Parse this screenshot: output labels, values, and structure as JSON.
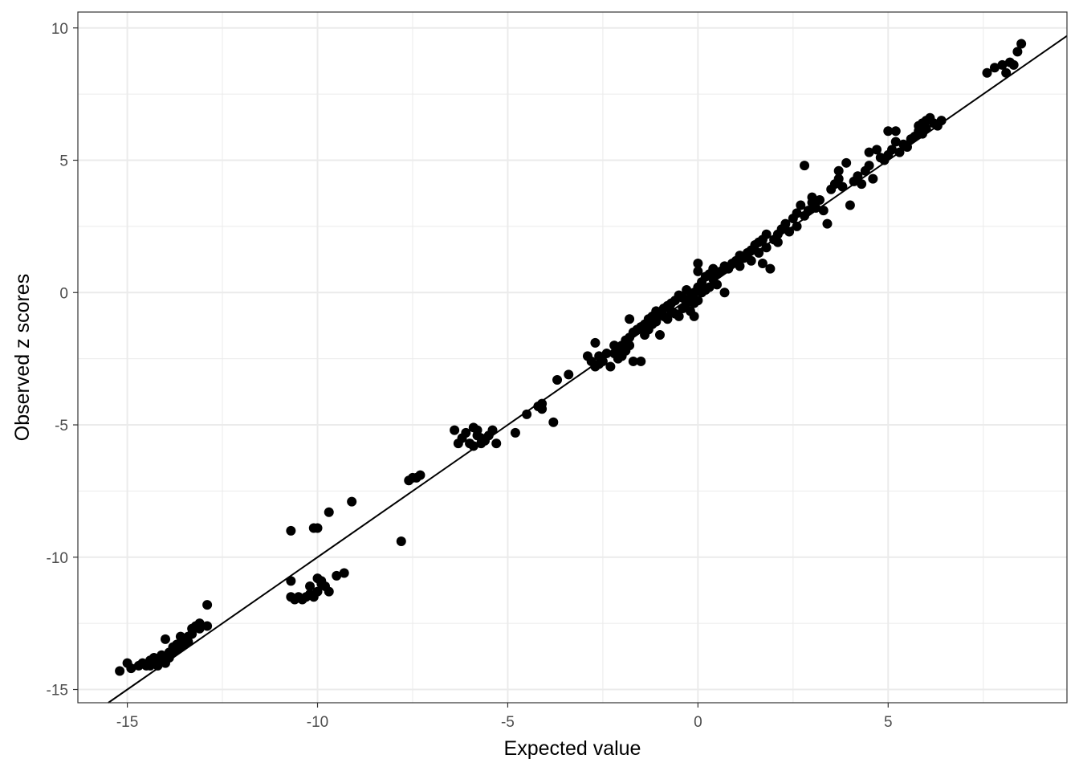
{
  "chart_data": {
    "type": "scatter",
    "title": "",
    "xlabel": "Expected value",
    "ylabel": "Observed z scores",
    "xlim": [
      -16.3,
      9.7
    ],
    "ylim": [
      -15.5,
      10.6
    ],
    "x_ticks": [
      -15,
      -10,
      -5,
      0,
      5
    ],
    "x_tick_labels": [
      "-15",
      "-10",
      "-5",
      "0",
      "5"
    ],
    "y_ticks": [
      -15,
      -10,
      -5,
      0,
      5,
      10
    ],
    "y_tick_labels": [
      "-15",
      "-10",
      "-5",
      "0",
      "5",
      "10"
    ],
    "grid": true,
    "legend": "none",
    "theme": "black-and-white panel with light grey grid",
    "colors": {
      "points": "#000000",
      "line": "#000000",
      "grid": "#ebebeb",
      "panel_border": "#333333",
      "tick_text": "#4d4d4d"
    },
    "reference_line": {
      "slope": 1,
      "intercept": 0,
      "from": [
        -15.7,
        -15.7
      ],
      "to": [
        9.7,
        9.7
      ]
    },
    "series": [
      {
        "values": [
          [
            -15.2,
            -14.3
          ],
          [
            -15.0,
            -14.0
          ],
          [
            -14.9,
            -14.2
          ],
          [
            -14.7,
            -14.1
          ],
          [
            -14.6,
            -14.0
          ],
          [
            -14.5,
            -14.1
          ],
          [
            -14.4,
            -13.9
          ],
          [
            -14.4,
            -14.1
          ],
          [
            -14.3,
            -13.8
          ],
          [
            -14.3,
            -14.0
          ],
          [
            -14.2,
            -13.9
          ],
          [
            -14.2,
            -14.1
          ],
          [
            -14.1,
            -13.7
          ],
          [
            -14.1,
            -13.9
          ],
          [
            -14.0,
            -13.8
          ],
          [
            -14.0,
            -14.0
          ],
          [
            -13.9,
            -13.6
          ],
          [
            -13.9,
            -13.8
          ],
          [
            -14.0,
            -13.1
          ],
          [
            -13.8,
            -13.4
          ],
          [
            -13.8,
            -13.6
          ],
          [
            -13.7,
            -13.3
          ],
          [
            -13.7,
            -13.5
          ],
          [
            -13.6,
            -13.0
          ],
          [
            -13.6,
            -13.4
          ],
          [
            -13.5,
            -13.1
          ],
          [
            -13.5,
            -13.3
          ],
          [
            -13.4,
            -13.0
          ],
          [
            -13.4,
            -13.2
          ],
          [
            -13.3,
            -12.9
          ],
          [
            -13.3,
            -12.7
          ],
          [
            -13.2,
            -12.6
          ],
          [
            -13.1,
            -12.7
          ],
          [
            -13.1,
            -12.5
          ],
          [
            -12.9,
            -12.6
          ],
          [
            -12.9,
            -11.8
          ],
          [
            -10.7,
            -10.9
          ],
          [
            -10.7,
            -11.5
          ],
          [
            -10.6,
            -11.6
          ],
          [
            -10.5,
            -11.5
          ],
          [
            -10.4,
            -11.6
          ],
          [
            -10.3,
            -11.5
          ],
          [
            -10.2,
            -11.4
          ],
          [
            -10.1,
            -11.5
          ],
          [
            -10.0,
            -11.3
          ],
          [
            -10.2,
            -11.1
          ],
          [
            -10.0,
            -10.8
          ],
          [
            -9.9,
            -11.0
          ],
          [
            -9.9,
            -10.9
          ],
          [
            -9.8,
            -11.1
          ],
          [
            -9.7,
            -11.3
          ],
          [
            -9.5,
            -10.7
          ],
          [
            -9.3,
            -10.6
          ],
          [
            -10.7,
            -9.0
          ],
          [
            -10.1,
            -8.9
          ],
          [
            -10.0,
            -8.9
          ],
          [
            -9.7,
            -8.3
          ],
          [
            -9.1,
            -7.9
          ],
          [
            -7.8,
            -9.4
          ],
          [
            -7.6,
            -7.1
          ],
          [
            -7.5,
            -7.0
          ],
          [
            -7.4,
            -7.0
          ],
          [
            -7.3,
            -6.9
          ],
          [
            -6.4,
            -5.2
          ],
          [
            -6.3,
            -5.7
          ],
          [
            -6.2,
            -5.5
          ],
          [
            -6.1,
            -5.3
          ],
          [
            -6.0,
            -5.7
          ],
          [
            -5.9,
            -5.8
          ],
          [
            -5.9,
            -5.1
          ],
          [
            -5.8,
            -5.4
          ],
          [
            -5.8,
            -5.2
          ],
          [
            -5.7,
            -5.7
          ],
          [
            -5.7,
            -5.5
          ],
          [
            -5.6,
            -5.6
          ],
          [
            -5.5,
            -5.4
          ],
          [
            -5.4,
            -5.2
          ],
          [
            -5.3,
            -5.7
          ],
          [
            -4.8,
            -5.3
          ],
          [
            -4.5,
            -4.6
          ],
          [
            -4.2,
            -4.3
          ],
          [
            -4.1,
            -4.2
          ],
          [
            -4.1,
            -4.4
          ],
          [
            -3.8,
            -4.9
          ],
          [
            -3.7,
            -3.3
          ],
          [
            -3.4,
            -3.1
          ],
          [
            -2.9,
            -2.4
          ],
          [
            -2.8,
            -2.6
          ],
          [
            -2.7,
            -2.8
          ],
          [
            -2.7,
            -1.9
          ],
          [
            -2.6,
            -2.4
          ],
          [
            -2.6,
            -2.7
          ],
          [
            -2.5,
            -2.6
          ],
          [
            -2.4,
            -2.3
          ],
          [
            -2.3,
            -2.8
          ],
          [
            -2.2,
            -2.0
          ],
          [
            -2.2,
            -2.3
          ],
          [
            -2.1,
            -2.1
          ],
          [
            -2.1,
            -2.5
          ],
          [
            -2.0,
            -2.0
          ],
          [
            -2.0,
            -2.4
          ],
          [
            -1.9,
            -1.8
          ],
          [
            -1.9,
            -2.2
          ],
          [
            -1.8,
            -1.7
          ],
          [
            -1.8,
            -2.0
          ],
          [
            -1.8,
            -1.0
          ],
          [
            -1.7,
            -1.5
          ],
          [
            -1.7,
            -2.6
          ],
          [
            -1.6,
            -1.4
          ],
          [
            -1.5,
            -1.3
          ],
          [
            -1.5,
            -2.6
          ],
          [
            -1.4,
            -1.6
          ],
          [
            -1.4,
            -1.2
          ],
          [
            -1.3,
            -1.0
          ],
          [
            -1.3,
            -1.4
          ],
          [
            -1.2,
            -0.9
          ],
          [
            -1.2,
            -1.2
          ],
          [
            -1.1,
            -0.7
          ],
          [
            -1.1,
            -1.1
          ],
          [
            -1.0,
            -0.8
          ],
          [
            -1.0,
            -1.6
          ],
          [
            -0.9,
            -0.6
          ],
          [
            -0.9,
            -0.9
          ],
          [
            -0.8,
            -0.5
          ],
          [
            -0.8,
            -1.0
          ],
          [
            -0.7,
            -0.4
          ],
          [
            -0.7,
            -0.7
          ],
          [
            -0.6,
            -0.3
          ],
          [
            -0.6,
            -0.8
          ],
          [
            -0.5,
            -0.1
          ],
          [
            -0.5,
            -0.9
          ],
          [
            -0.4,
            -0.2
          ],
          [
            -0.4,
            -0.6
          ],
          [
            -0.3,
            0.1
          ],
          [
            -0.3,
            -0.4
          ],
          [
            -0.2,
            -0.2
          ],
          [
            -0.2,
            -0.7
          ],
          [
            -0.1,
            0.0
          ],
          [
            -0.1,
            -0.4
          ],
          [
            -0.1,
            -0.9
          ],
          [
            0.0,
            0.2
          ],
          [
            0.0,
            -0.3
          ],
          [
            0.0,
            1.1
          ],
          [
            0.0,
            0.8
          ],
          [
            0.1,
            0.4
          ],
          [
            0.1,
            0.0
          ],
          [
            0.2,
            0.6
          ],
          [
            0.2,
            0.1
          ],
          [
            0.3,
            0.7
          ],
          [
            0.3,
            0.2
          ],
          [
            0.4,
            0.5
          ],
          [
            0.4,
            0.9
          ],
          [
            0.5,
            0.7
          ],
          [
            0.5,
            0.3
          ],
          [
            0.6,
            0.8
          ],
          [
            0.7,
            1.0
          ],
          [
            0.7,
            -0.0
          ],
          [
            0.8,
            0.9
          ],
          [
            0.9,
            1.1
          ],
          [
            1.0,
            1.2
          ],
          [
            1.1,
            1.0
          ],
          [
            1.1,
            1.4
          ],
          [
            1.2,
            1.3
          ],
          [
            1.3,
            1.5
          ],
          [
            1.4,
            1.6
          ],
          [
            1.4,
            1.2
          ],
          [
            1.5,
            1.8
          ],
          [
            1.6,
            1.5
          ],
          [
            1.6,
            1.9
          ],
          [
            1.7,
            2.0
          ],
          [
            1.8,
            1.7
          ],
          [
            1.8,
            2.2
          ],
          [
            1.7,
            1.1
          ],
          [
            1.9,
            0.9
          ],
          [
            2.0,
            2.0
          ],
          [
            2.1,
            2.2
          ],
          [
            2.1,
            1.9
          ],
          [
            2.2,
            2.4
          ],
          [
            2.3,
            2.6
          ],
          [
            2.4,
            2.3
          ],
          [
            2.5,
            2.8
          ],
          [
            2.6,
            3.0
          ],
          [
            2.6,
            2.5
          ],
          [
            2.7,
            3.3
          ],
          [
            2.8,
            2.9
          ],
          [
            2.8,
            4.8
          ],
          [
            2.9,
            3.1
          ],
          [
            3.0,
            3.4
          ],
          [
            3.0,
            3.6
          ],
          [
            3.1,
            3.2
          ],
          [
            3.2,
            3.5
          ],
          [
            3.3,
            3.1
          ],
          [
            3.4,
            2.6
          ],
          [
            3.5,
            3.9
          ],
          [
            3.6,
            4.1
          ],
          [
            3.7,
            4.6
          ],
          [
            3.7,
            4.3
          ],
          [
            3.8,
            4.0
          ],
          [
            3.9,
            4.9
          ],
          [
            4.0,
            3.3
          ],
          [
            4.1,
            4.2
          ],
          [
            4.2,
            4.4
          ],
          [
            4.3,
            4.1
          ],
          [
            4.4,
            4.6
          ],
          [
            4.5,
            4.8
          ],
          [
            4.5,
            5.3
          ],
          [
            4.6,
            4.3
          ],
          [
            4.7,
            5.4
          ],
          [
            4.8,
            5.1
          ],
          [
            4.9,
            5.0
          ],
          [
            5.0,
            5.2
          ],
          [
            5.0,
            6.1
          ],
          [
            5.1,
            5.4
          ],
          [
            5.2,
            5.7
          ],
          [
            5.2,
            6.1
          ],
          [
            5.3,
            5.3
          ],
          [
            5.4,
            5.6
          ],
          [
            5.5,
            5.5
          ],
          [
            5.6,
            5.8
          ],
          [
            5.7,
            5.9
          ],
          [
            5.8,
            6.1
          ],
          [
            5.8,
            6.3
          ],
          [
            5.9,
            6.4
          ],
          [
            5.9,
            6.0
          ],
          [
            6.0,
            6.5
          ],
          [
            6.0,
            6.2
          ],
          [
            6.1,
            6.6
          ],
          [
            6.2,
            6.4
          ],
          [
            6.3,
            6.3
          ],
          [
            6.4,
            6.5
          ],
          [
            7.6,
            8.3
          ],
          [
            7.8,
            8.5
          ],
          [
            8.0,
            8.6
          ],
          [
            8.1,
            8.3
          ],
          [
            8.2,
            8.7
          ],
          [
            8.3,
            8.6
          ],
          [
            8.4,
            9.1
          ],
          [
            8.5,
            9.4
          ]
        ]
      }
    ]
  }
}
